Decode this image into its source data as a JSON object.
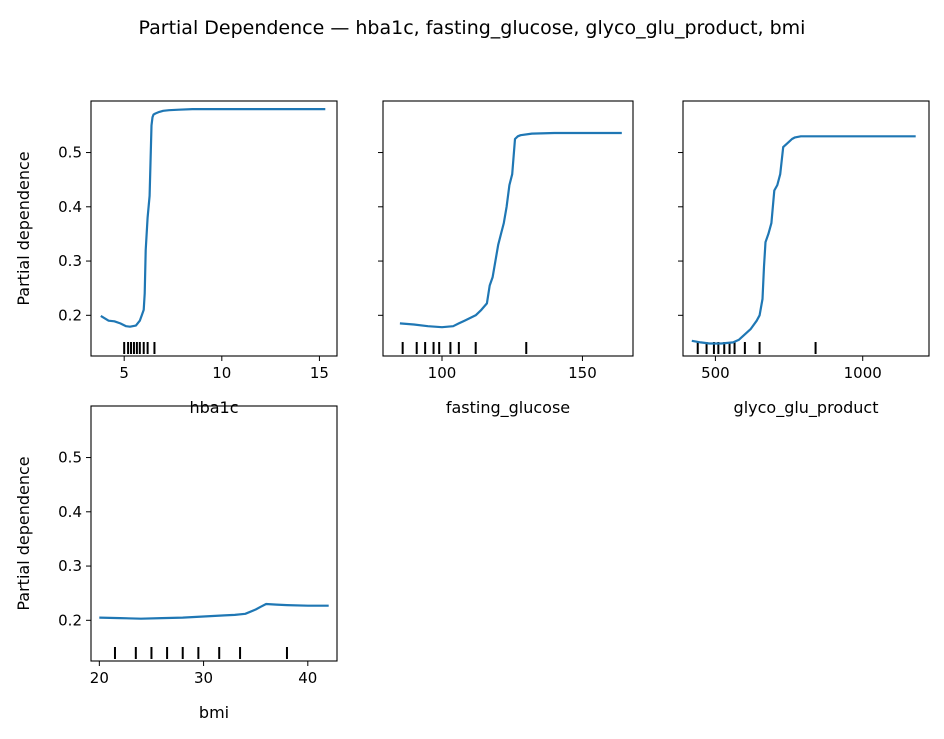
{
  "chart_data": {
    "type": "line",
    "title": "Partial Dependence — hba1c, fasting_glucose, glyco_glu_product, bmi",
    "shared_ylim": [
      0.125,
      0.595
    ],
    "shared_yticks": [
      "0.2",
      "0.3",
      "0.4",
      "0.5"
    ],
    "panels": [
      {
        "name": "hba1c",
        "xlabel": "hba1c",
        "ylabel": "Partial dependence",
        "xlim": [
          3.3,
          15.9
        ],
        "xticks": [
          5,
          10,
          15
        ],
        "xtick_labels": [
          "5",
          "10",
          "15"
        ],
        "show_ytick_labels": true,
        "x": [
          3.8,
          4.2,
          4.5,
          4.8,
          5.1,
          5.3,
          5.6,
          5.8,
          5.9,
          6.0,
          6.05,
          6.1,
          6.2,
          6.3,
          6.4,
          6.45,
          6.5,
          6.6,
          6.8,
          7.0,
          7.3,
          7.8,
          8.5,
          10.0,
          12.0,
          15.3
        ],
        "y": [
          0.199,
          0.19,
          0.189,
          0.185,
          0.18,
          0.179,
          0.181,
          0.19,
          0.2,
          0.21,
          0.24,
          0.32,
          0.38,
          0.42,
          0.55,
          0.565,
          0.57,
          0.572,
          0.575,
          0.577,
          0.578,
          0.579,
          0.58,
          0.58,
          0.58,
          0.58
        ],
        "rug": [
          5.0,
          5.2,
          5.35,
          5.5,
          5.65,
          5.8,
          6.0,
          6.2,
          6.55
        ]
      },
      {
        "name": "fasting_glucose",
        "xlabel": "fasting_glucose",
        "ylabel": "",
        "xlim": [
          79,
          168
        ],
        "xticks": [
          100,
          150
        ],
        "xtick_labels": [
          "100",
          "150"
        ],
        "show_ytick_labels": false,
        "x": [
          85,
          90,
          95,
          100,
          104,
          106,
          108,
          110,
          112,
          114,
          116,
          117,
          118,
          119,
          120,
          121,
          122,
          123,
          124,
          125,
          126,
          127,
          128,
          132,
          140,
          164
        ],
        "y": [
          0.185,
          0.183,
          0.18,
          0.178,
          0.18,
          0.185,
          0.19,
          0.195,
          0.2,
          0.21,
          0.222,
          0.255,
          0.27,
          0.3,
          0.33,
          0.35,
          0.37,
          0.4,
          0.44,
          0.46,
          0.525,
          0.53,
          0.532,
          0.535,
          0.536,
          0.536
        ],
        "rug": [
          86,
          91,
          94,
          97,
          99,
          103,
          106,
          112,
          130
        ]
      },
      {
        "name": "glyco_glu_product",
        "xlabel": "glyco_glu_product",
        "ylabel": "",
        "xlim": [
          390,
          1225
        ],
        "xticks": [
          500,
          1000
        ],
        "xtick_labels": [
          "500",
          "1000"
        ],
        "show_ytick_labels": false,
        "x": [
          420,
          450,
          480,
          520,
          560,
          580,
          600,
          620,
          640,
          650,
          660,
          665,
          670,
          680,
          690,
          700,
          710,
          720,
          730,
          740,
          750,
          760,
          770,
          790,
          850,
          1000,
          1180
        ],
        "y": [
          0.153,
          0.15,
          0.148,
          0.148,
          0.15,
          0.155,
          0.165,
          0.175,
          0.19,
          0.2,
          0.23,
          0.29,
          0.335,
          0.35,
          0.37,
          0.43,
          0.44,
          0.46,
          0.51,
          0.515,
          0.52,
          0.525,
          0.528,
          0.53,
          0.53,
          0.53,
          0.53
        ],
        "rug": [
          440,
          470,
          495,
          510,
          530,
          548,
          565,
          600,
          650,
          840
        ]
      },
      {
        "name": "bmi",
        "xlabel": "bmi",
        "ylabel": "Partial dependence",
        "xlim": [
          19.2,
          42.8
        ],
        "xticks": [
          20,
          30,
          40
        ],
        "xtick_labels": [
          "20",
          "30",
          "40"
        ],
        "show_ytick_labels": true,
        "x": [
          20.0,
          22.0,
          24.0,
          26.0,
          28.0,
          30.0,
          32.0,
          33.0,
          34.0,
          35.0,
          35.5,
          36.0,
          37.0,
          38.0,
          40.0,
          42.0
        ],
        "y": [
          0.205,
          0.204,
          0.203,
          0.204,
          0.205,
          0.207,
          0.209,
          0.21,
          0.212,
          0.22,
          0.225,
          0.23,
          0.229,
          0.228,
          0.227,
          0.227
        ],
        "rug": [
          21.5,
          23.5,
          25.0,
          26.5,
          28.0,
          29.5,
          31.5,
          33.5,
          38.0
        ]
      }
    ]
  }
}
